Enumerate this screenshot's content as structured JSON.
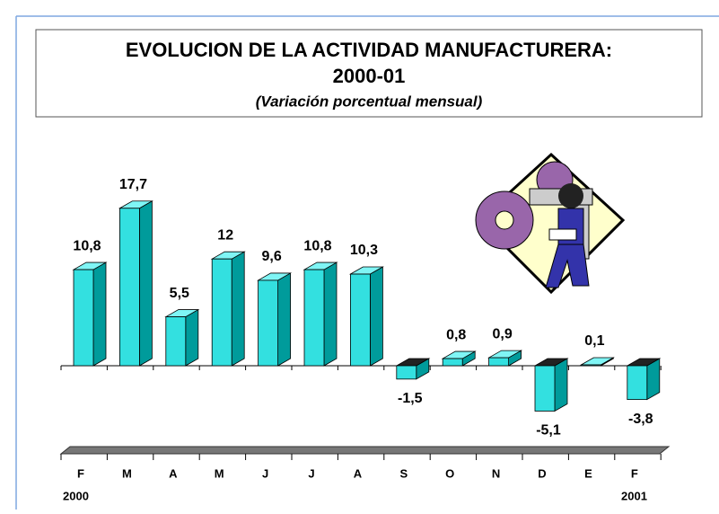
{
  "chart_data": {
    "type": "bar",
    "title": "EVOLUCION DE LA ACTIVIDAD MANUFACTURERA:",
    "title_line2": "2000-01",
    "subtitle": "(Variación porcentual mensual)",
    "categories": [
      "F",
      "M",
      "A",
      "M",
      "J",
      "J",
      "A",
      "S",
      "O",
      "N",
      "D",
      "E",
      "F"
    ],
    "year_labels": [
      "2000",
      "2001"
    ],
    "values": [
      10.8,
      17.7,
      5.5,
      12,
      9.6,
      10.8,
      10.3,
      -1.5,
      0.8,
      0.9,
      -5.1,
      0.1,
      -3.8
    ],
    "value_labels": [
      "10,8",
      "17,7",
      "5,5",
      "12",
      "9,6",
      "10,8",
      "10,3",
      "-1,5",
      "0,8",
      "0,9",
      "-5,1",
      "0,1",
      "-3,8"
    ],
    "color": "#33e0e0"
  }
}
